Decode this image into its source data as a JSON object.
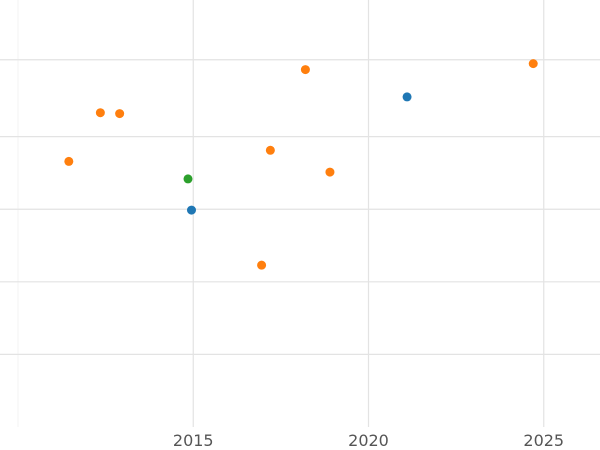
{
  "chart_data": {
    "type": "scatter",
    "title": "",
    "xlabel": "",
    "ylabel": "",
    "xlim": [
      2010,
      2026.5
    ],
    "ylim": [
      0,
      1
    ],
    "grid": true,
    "legend": "none",
    "x_ticks": [
      2015,
      2020,
      2025
    ],
    "x_tick_labels": [
      "2015",
      "2020",
      "2025"
    ],
    "series": [
      {
        "color": "#1f77b4",
        "points": [
          {
            "x": 2014.95,
            "y": 0.508
          },
          {
            "x": 2021.1,
            "y": 0.773
          }
        ]
      },
      {
        "color": "#ff7f0e",
        "points": [
          {
            "x": 2011.45,
            "y": 0.622
          },
          {
            "x": 2012.35,
            "y": 0.736
          },
          {
            "x": 2012.9,
            "y": 0.734
          },
          {
            "x": 2016.95,
            "y": 0.379
          },
          {
            "x": 2017.2,
            "y": 0.648
          },
          {
            "x": 2018.2,
            "y": 0.837
          },
          {
            "x": 2018.9,
            "y": 0.597
          },
          {
            "x": 2024.7,
            "y": 0.851
          }
        ]
      },
      {
        "color": "#2ca02c",
        "points": [
          {
            "x": 2014.85,
            "y": 0.581
          }
        ]
      }
    ]
  }
}
